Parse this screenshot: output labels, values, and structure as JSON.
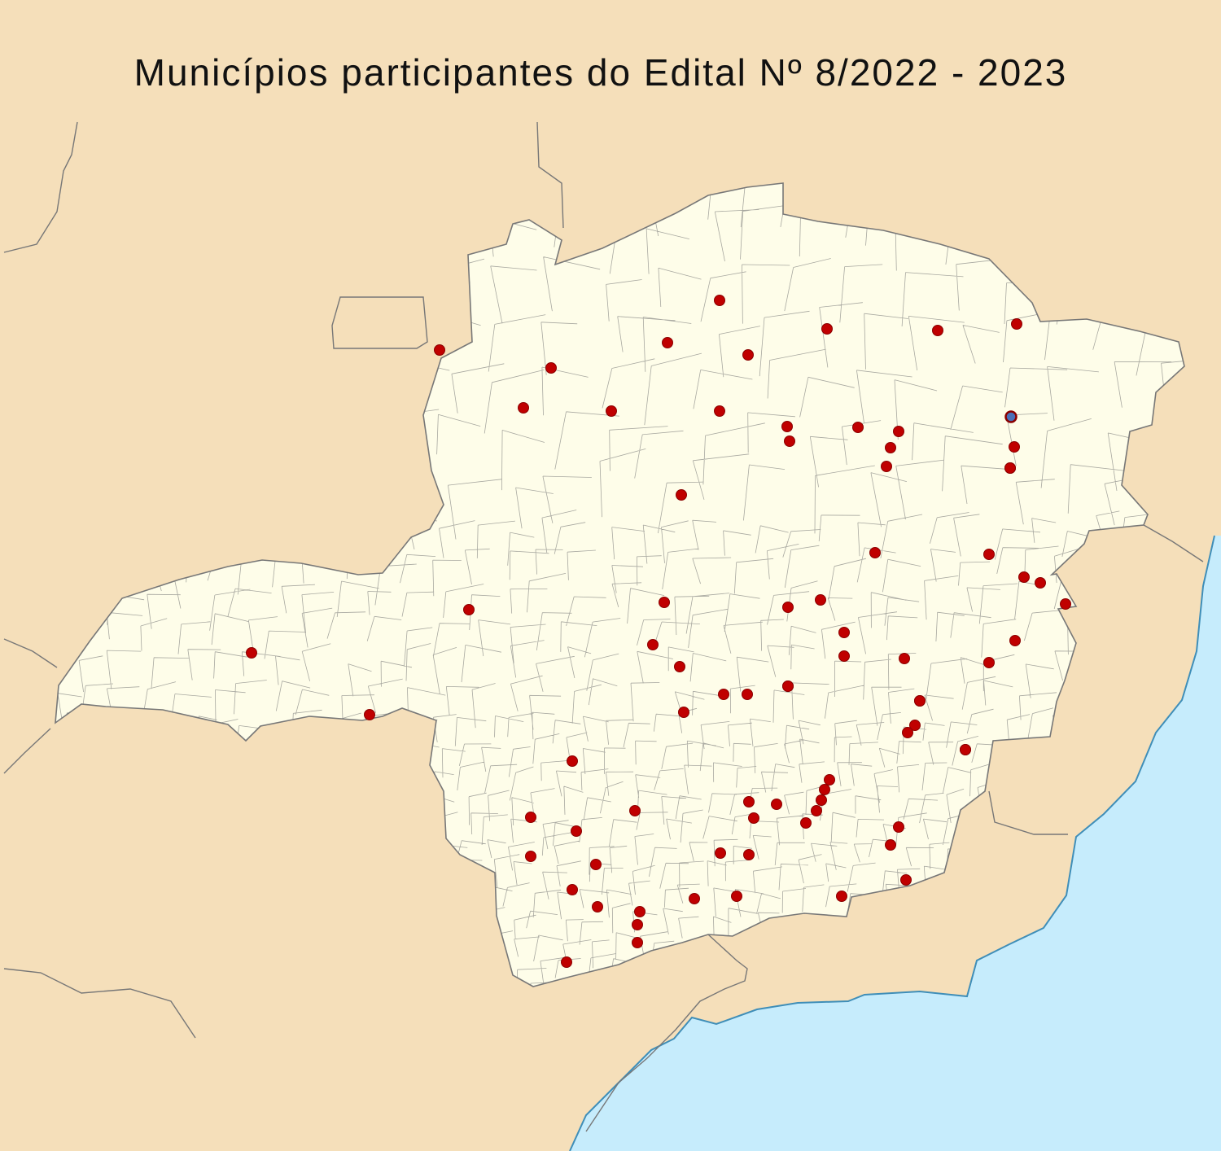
{
  "title": "Municípios participantes do Edital Nº 8/2022 - 2023",
  "colors": {
    "land_outside": "#f5dfba",
    "state_fill": "#fefde9",
    "sea": "#c6ecfc",
    "coast_line": "#3f8eb8",
    "border_line": "#777777",
    "municipal_line": "#a8a8a0",
    "marker": "#c00000",
    "marker_stroke": "#8a0000",
    "marker_highlight": "#4a6fb8"
  },
  "markers": [
    {
      "name": "marker-1"
    },
    {
      "name": "marker-2"
    },
    {
      "name": "marker-3"
    },
    {
      "name": "marker-4"
    },
    {
      "name": "marker-5"
    },
    {
      "name": "marker-6"
    },
    {
      "name": "marker-7"
    },
    {
      "name": "marker-8"
    },
    {
      "name": "marker-9"
    },
    {
      "name": "marker-10"
    },
    {
      "name": "marker-11"
    },
    {
      "name": "marker-12"
    },
    {
      "name": "marker-13"
    },
    {
      "name": "marker-14"
    },
    {
      "name": "marker-15"
    },
    {
      "name": "marker-16"
    },
    {
      "name": "marker-17"
    },
    {
      "name": "marker-18"
    },
    {
      "name": "marker-19"
    },
    {
      "name": "marker-20"
    },
    {
      "name": "marker-21"
    },
    {
      "name": "marker-22"
    },
    {
      "name": "marker-23"
    },
    {
      "name": "marker-24"
    },
    {
      "name": "marker-25"
    },
    {
      "name": "marker-26"
    },
    {
      "name": "marker-27"
    },
    {
      "name": "marker-28"
    },
    {
      "name": "marker-29"
    },
    {
      "name": "marker-30"
    },
    {
      "name": "marker-31"
    },
    {
      "name": "marker-32"
    },
    {
      "name": "marker-33"
    },
    {
      "name": "marker-34"
    },
    {
      "name": "marker-35"
    },
    {
      "name": "marker-36"
    },
    {
      "name": "marker-37"
    },
    {
      "name": "marker-38"
    },
    {
      "name": "marker-39"
    },
    {
      "name": "marker-40"
    },
    {
      "name": "marker-41"
    },
    {
      "name": "marker-42"
    },
    {
      "name": "marker-43"
    },
    {
      "name": "marker-44"
    },
    {
      "name": "marker-45"
    },
    {
      "name": "marker-46"
    },
    {
      "name": "marker-47"
    },
    {
      "name": "marker-48"
    },
    {
      "name": "marker-49"
    },
    {
      "name": "marker-50"
    },
    {
      "name": "marker-51"
    },
    {
      "name": "marker-52"
    },
    {
      "name": "marker-53"
    },
    {
      "name": "marker-54"
    },
    {
      "name": "marker-55"
    },
    {
      "name": "marker-56"
    },
    {
      "name": "marker-57"
    },
    {
      "name": "marker-58"
    },
    {
      "name": "marker-59"
    },
    {
      "name": "marker-60"
    },
    {
      "name": "marker-61"
    },
    {
      "name": "marker-62"
    },
    {
      "name": "marker-63"
    },
    {
      "name": "marker-64"
    },
    {
      "name": "marker-65"
    },
    {
      "name": "marker-66"
    },
    {
      "name": "marker-67"
    },
    {
      "name": "marker-68"
    },
    {
      "name": "marker-69"
    },
    {
      "name": "marker-70"
    },
    {
      "name": "marker-71"
    },
    {
      "name": "marker-72"
    },
    {
      "name": "marker-73"
    },
    {
      "name": "marker-74"
    },
    {
      "name": "marker-75"
    },
    {
      "name": "marker-76"
    },
    {
      "name": "marker-77"
    },
    {
      "name": "marker-78"
    },
    {
      "name": "marker-79",
      "highlight": true
    }
  ]
}
